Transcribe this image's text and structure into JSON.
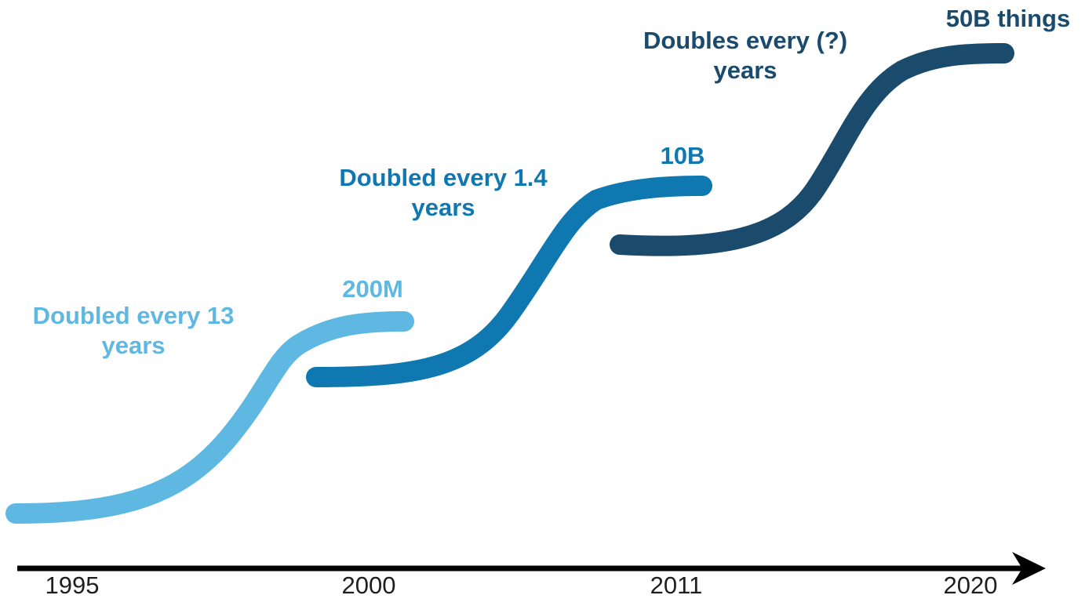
{
  "colors": {
    "phase1": "#5fb8e2",
    "phase2": "#0f78b0",
    "phase3": "#1a4a6c",
    "axis": "#000000",
    "year_text": "#1f1f1f"
  },
  "phases": [
    {
      "growth_line1": "Doubled every 13",
      "growth_line2": "years",
      "end_value": "200M"
    },
    {
      "growth_line1": "Doubled every 1.4",
      "growth_line2": "years",
      "end_value": "10B"
    },
    {
      "growth_line1": "Doubles every (?)",
      "growth_line2": "years",
      "end_value": "50B things"
    }
  ],
  "timeline": {
    "years": [
      "1995",
      "2000",
      "2011",
      "2020"
    ]
  }
}
